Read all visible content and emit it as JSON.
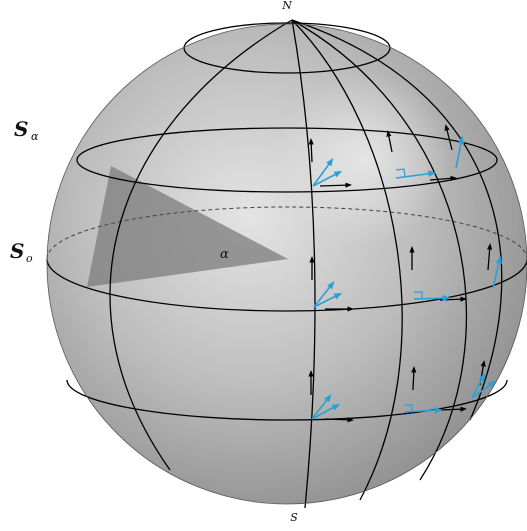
{
  "labels": {
    "north": "N",
    "south": "S",
    "latitude_circle": "S",
    "latitude_circle_sub": "α",
    "equator": "S",
    "equator_sub": "o",
    "angle": "α"
  },
  "colors": {
    "sphere_light": "#e2e2e2",
    "sphere_mid": "#b9b9b9",
    "sphere_dark": "#8e8e8e",
    "line": "#000000",
    "wedge": "#7c7c7c",
    "vector": "#2aa0d6",
    "vector_dark": "#1f88b8"
  }
}
